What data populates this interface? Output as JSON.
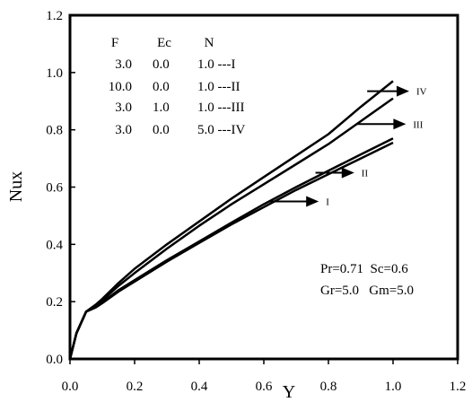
{
  "chart_data": {
    "type": "line",
    "xlabel": "Y",
    "ylabel": "Nux",
    "xlim": [
      0,
      1.2
    ],
    "ylim": [
      0,
      1.2
    ],
    "x_ticks": [
      "0.0",
      "0.2",
      "0.4",
      "0.6",
      "0.8",
      "1.0",
      "1.2"
    ],
    "y_ticks": [
      "0.0",
      "0.2",
      "0.4",
      "0.6",
      "0.8",
      "1.0",
      "1.2"
    ],
    "grid": false,
    "legend": {
      "header": [
        "F",
        "Ec",
        "N"
      ],
      "rows": [
        [
          "3.0",
          "0.0",
          "1.0 ---I"
        ],
        [
          "10.0",
          "0.0",
          "1.0 ---II"
        ],
        [
          "3.0",
          "1.0",
          "1.0 ---III"
        ],
        [
          "3.0",
          "0.0",
          "5.0 ---IV"
        ]
      ]
    },
    "parameters": [
      "Pr=0.71  Sc=0.6",
      "Gr=5.0   Gm=5.0"
    ],
    "series": [
      {
        "label": "I",
        "x": [
          0,
          0.02,
          0.05,
          0.08,
          0.1,
          0.15,
          0.2,
          0.3,
          0.4,
          0.5,
          0.6,
          0.7,
          0.8,
          0.9,
          1.0
        ],
        "values": [
          0,
          0.09,
          0.165,
          0.18,
          0.195,
          0.235,
          0.27,
          0.34,
          0.405,
          0.47,
          0.53,
          0.59,
          0.645,
          0.7,
          0.755
        ]
      },
      {
        "label": "II",
        "x": [
          0,
          0.02,
          0.05,
          0.08,
          0.1,
          0.15,
          0.2,
          0.3,
          0.4,
          0.5,
          0.6,
          0.7,
          0.8,
          0.9,
          1.0
        ],
        "values": [
          0,
          0.09,
          0.165,
          0.182,
          0.198,
          0.24,
          0.275,
          0.345,
          0.41,
          0.476,
          0.54,
          0.6,
          0.657,
          0.714,
          0.77
        ]
      },
      {
        "label": "III",
        "x": [
          0,
          0.02,
          0.05,
          0.08,
          0.1,
          0.15,
          0.2,
          0.3,
          0.4,
          0.5,
          0.6,
          0.7,
          0.8,
          0.9,
          1.0
        ],
        "values": [
          0,
          0.09,
          0.165,
          0.185,
          0.205,
          0.255,
          0.3,
          0.385,
          0.465,
          0.54,
          0.61,
          0.68,
          0.75,
          0.83,
          0.91
        ]
      },
      {
        "label": "IV",
        "x": [
          0,
          0.02,
          0.05,
          0.08,
          0.1,
          0.15,
          0.2,
          0.3,
          0.4,
          0.5,
          0.6,
          0.7,
          0.8,
          0.9,
          1.0
        ],
        "values": [
          0,
          0.09,
          0.165,
          0.19,
          0.21,
          0.265,
          0.315,
          0.4,
          0.48,
          0.56,
          0.635,
          0.71,
          0.785,
          0.88,
          0.97
        ]
      }
    ],
    "annotations": [
      {
        "label": "I",
        "arrow_from": [
          0.62,
          0.55
        ],
        "arrow_to": [
          0.77,
          0.55
        ]
      },
      {
        "label": "II",
        "arrow_from": [
          0.76,
          0.65
        ],
        "arrow_to": [
          0.88,
          0.65
        ]
      },
      {
        "label": "III",
        "arrow_from": [
          0.89,
          0.82
        ],
        "arrow_to": [
          1.04,
          0.82
        ]
      },
      {
        "label": "IV",
        "arrow_from": [
          0.92,
          0.935
        ],
        "arrow_to": [
          1.05,
          0.935
        ]
      }
    ]
  }
}
